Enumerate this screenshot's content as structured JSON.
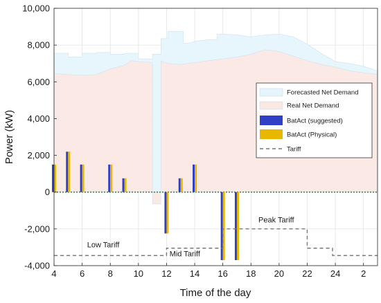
{
  "chart_data": {
    "type": "bar",
    "xlabel": "Time of the day",
    "ylabel": "Power (kW)",
    "ylim": [
      -4000,
      10000
    ],
    "xlim": [
      4,
      3
    ],
    "grid": true,
    "legend_position": "right",
    "x_ticks": [
      "4",
      "6",
      "8",
      "10",
      "12",
      "14",
      "16",
      "18",
      "20",
      "22",
      "24",
      "2"
    ],
    "x_tick_hours": [
      4,
      6,
      8,
      10,
      12,
      14,
      16,
      18,
      20,
      22,
      24,
      26
    ],
    "y_ticks": [
      "-4,000",
      "-2,000",
      "0",
      "2,000",
      "4,000",
      "6,000",
      "8,000",
      "10,000"
    ],
    "y_tick_values": [
      -4000,
      -2000,
      0,
      2000,
      4000,
      6000,
      8000,
      10000
    ],
    "legend": [
      {
        "label": "Forecasted Net Demand",
        "kind": "area",
        "color": "#e6f4fc"
      },
      {
        "label": "Real Net Demand",
        "kind": "area",
        "color": "#fbe8e3"
      },
      {
        "label": "BatAct (suggested)",
        "kind": "bar",
        "color": "#2f3fc6"
      },
      {
        "label": "BatAct (Physical)",
        "kind": "bar",
        "color": "#e8b800"
      },
      {
        "label": "Tariff",
        "kind": "dashed",
        "color": "#777777"
      }
    ],
    "series": [
      {
        "name": "Forecasted Net Demand",
        "type": "area",
        "color": "#e6f4fc",
        "x": [
          4,
          5,
          5,
          6,
          6,
          7,
          7,
          8,
          8,
          9,
          9,
          10,
          10,
          11,
          11,
          11.6,
          11.6,
          12.1,
          12.1,
          13.2,
          13.2,
          13.6,
          14,
          15,
          15.6,
          15.6,
          16,
          17,
          18,
          19,
          20,
          21,
          22,
          23,
          24,
          25,
          26,
          27
        ],
        "y": [
          7550,
          7550,
          7350,
          7350,
          7550,
          7550,
          7600,
          7600,
          7500,
          7500,
          7550,
          7550,
          7250,
          7250,
          7500,
          7500,
          8350,
          8350,
          8750,
          8750,
          8100,
          8100,
          8200,
          8300,
          8300,
          8600,
          8600,
          8550,
          8450,
          8550,
          8600,
          8450,
          8050,
          7550,
          7100,
          7000,
          6850,
          6600
        ]
      },
      {
        "name": "Real Net Demand",
        "type": "area",
        "color": "#fbe8e3",
        "x": [
          4,
          5,
          6,
          7,
          8,
          9,
          9.5,
          10,
          11,
          11,
          11.6,
          11.6,
          12,
          13,
          14,
          15,
          16,
          17,
          18,
          19,
          20,
          21,
          22,
          23,
          24,
          25,
          26,
          27
        ],
        "y": [
          6450,
          6400,
          6350,
          6400,
          6700,
          6900,
          7150,
          7100,
          7050,
          -650,
          -650,
          7150,
          7000,
          6950,
          7050,
          7150,
          7250,
          7350,
          7500,
          7750,
          7650,
          7400,
          7150,
          6950,
          6800,
          6600,
          6500,
          6400
        ]
      },
      {
        "name": "BatAct (suggested)",
        "type": "bar",
        "color": "#2f3fc6",
        "x": [
          4,
          5,
          6,
          8,
          9,
          12,
          13,
          14,
          16,
          17
        ],
        "values": [
          1500,
          2200,
          1500,
          1500,
          750,
          -2250,
          750,
          1500,
          -3700,
          -3700
        ]
      },
      {
        "name": "BatAct (Physical)",
        "type": "bar",
        "color": "#e8b800",
        "x": [
          4,
          5,
          6,
          8,
          9,
          12,
          13,
          14,
          16,
          17
        ],
        "values": [
          1500,
          2200,
          1500,
          1500,
          750,
          -2250,
          750,
          1500,
          -3700,
          -3700
        ]
      },
      {
        "name": "Tariff",
        "type": "line",
        "style": "dashed",
        "color": "#777777",
        "x": [
          4,
          12,
          12,
          16,
          16,
          22,
          22,
          23.8,
          23.8,
          27
        ],
        "y": [
          -3450,
          -3450,
          -3050,
          -3050,
          -2000,
          -2000,
          -3050,
          -3050,
          -3450,
          -3450
        ]
      }
    ],
    "annotations": [
      {
        "text": "Low Tariff",
        "x": 7.5,
        "y": -3000
      },
      {
        "text": "Mid Tariff",
        "x": 13.3,
        "y": -3500
      },
      {
        "text": "Peak Tariff",
        "x": 19.8,
        "y": -1650
      }
    ]
  }
}
